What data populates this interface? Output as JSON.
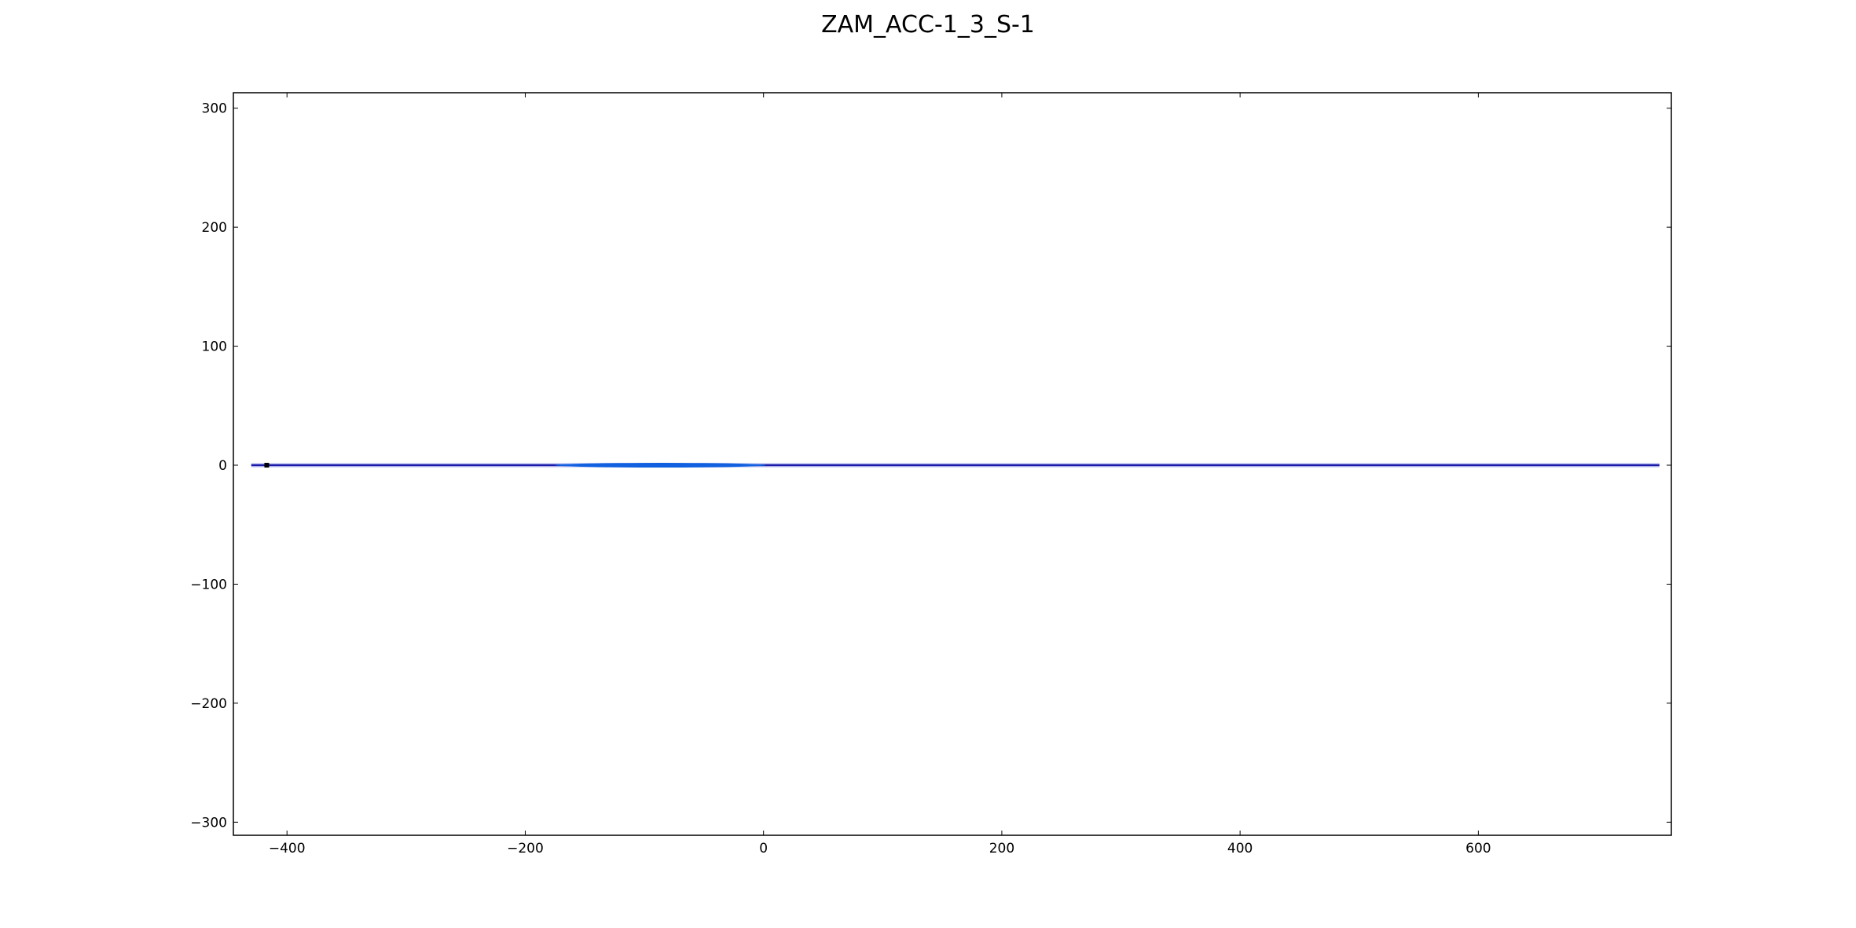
{
  "chart_data": {
    "type": "line",
    "title": "ZAM_ACC-1_3_S-1",
    "xlabel": "",
    "ylabel": "",
    "xlim": [
      -445,
      762
    ],
    "ylim": [
      -311,
      313
    ],
    "x_ticks": [
      -400,
      -200,
      0,
      200,
      400,
      600
    ],
    "y_ticks": [
      300,
      200,
      100,
      0,
      -100,
      -200,
      -300
    ],
    "x_tick_labels": [
      "−400",
      "−200",
      "0",
      "200",
      "400",
      "600"
    ],
    "y_tick_labels": [
      "300",
      "200",
      "100",
      "0",
      "−100",
      "−200",
      "−300"
    ],
    "grid": false,
    "legend": "none",
    "series": [
      {
        "kind": "lane-band",
        "x_range": [
          -430,
          752
        ],
        "y_range": [
          -2,
          2
        ],
        "color": "#b0b8f0"
      },
      {
        "kind": "centerline",
        "x": [
          -430,
          752
        ],
        "y": [
          0,
          0
        ],
        "color": "#1a1aa8"
      },
      {
        "kind": "vehicle-trajectory",
        "x_range": [
          -175,
          2
        ],
        "y_range": [
          -1.8,
          1.8
        ],
        "color": "#1060e0"
      },
      {
        "kind": "ego-marker",
        "x": [
          -417
        ],
        "y": [
          0
        ],
        "color": "#000000"
      }
    ]
  }
}
